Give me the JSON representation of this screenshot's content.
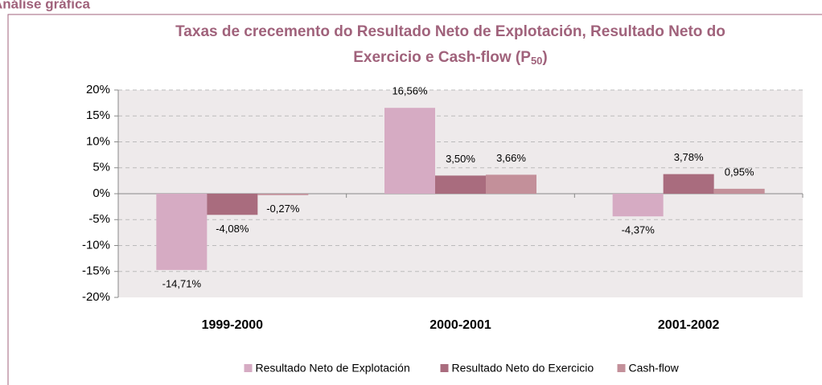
{
  "header": "Análise gráfica",
  "chart_data": {
    "type": "bar",
    "title": [
      "Taxas de crecemento do Resultado Neto de Explotación, Resultado Neto do",
      "Exercicio e Cash-flow (P"
    ],
    "title_subscript": "50",
    "title_suffix": ")",
    "categories": [
      "1999-2000",
      "2000-2001",
      "2001-2002"
    ],
    "series": [
      {
        "name": "Resultado Neto de Explotación",
        "color": "#d6abc3",
        "values": [
          -14.71,
          16.56,
          -4.37
        ],
        "value_labels": [
          "-14,71%",
          "16,56%",
          "-4,37%"
        ]
      },
      {
        "name": "Resultado Neto do Exercicio",
        "color": "#a96c7e",
        "values": [
          -4.08,
          3.5,
          3.78
        ],
        "value_labels": [
          "-4,08%",
          "3,50%",
          "3,78%"
        ]
      },
      {
        "name": "Cash-flow",
        "color": "#c3909a",
        "values": [
          -0.27,
          3.66,
          0.95
        ],
        "value_labels": [
          "-0,27%",
          "3,66%",
          "0,95%"
        ]
      }
    ],
    "ylim": [
      -20,
      20
    ],
    "yticks": [
      {
        "value": -20,
        "label": "-20%"
      },
      {
        "value": -15,
        "label": "-15%"
      },
      {
        "value": -10,
        "label": "-10%"
      },
      {
        "value": -5,
        "label": "-5%"
      },
      {
        "value": 0,
        "label": "0%"
      },
      {
        "value": 5,
        "label": "5%"
      },
      {
        "value": 10,
        "label": "10%"
      },
      {
        "value": 15,
        "label": "15%"
      },
      {
        "value": 20,
        "label": "20%"
      }
    ],
    "grid": true,
    "legend": "bottom"
  }
}
